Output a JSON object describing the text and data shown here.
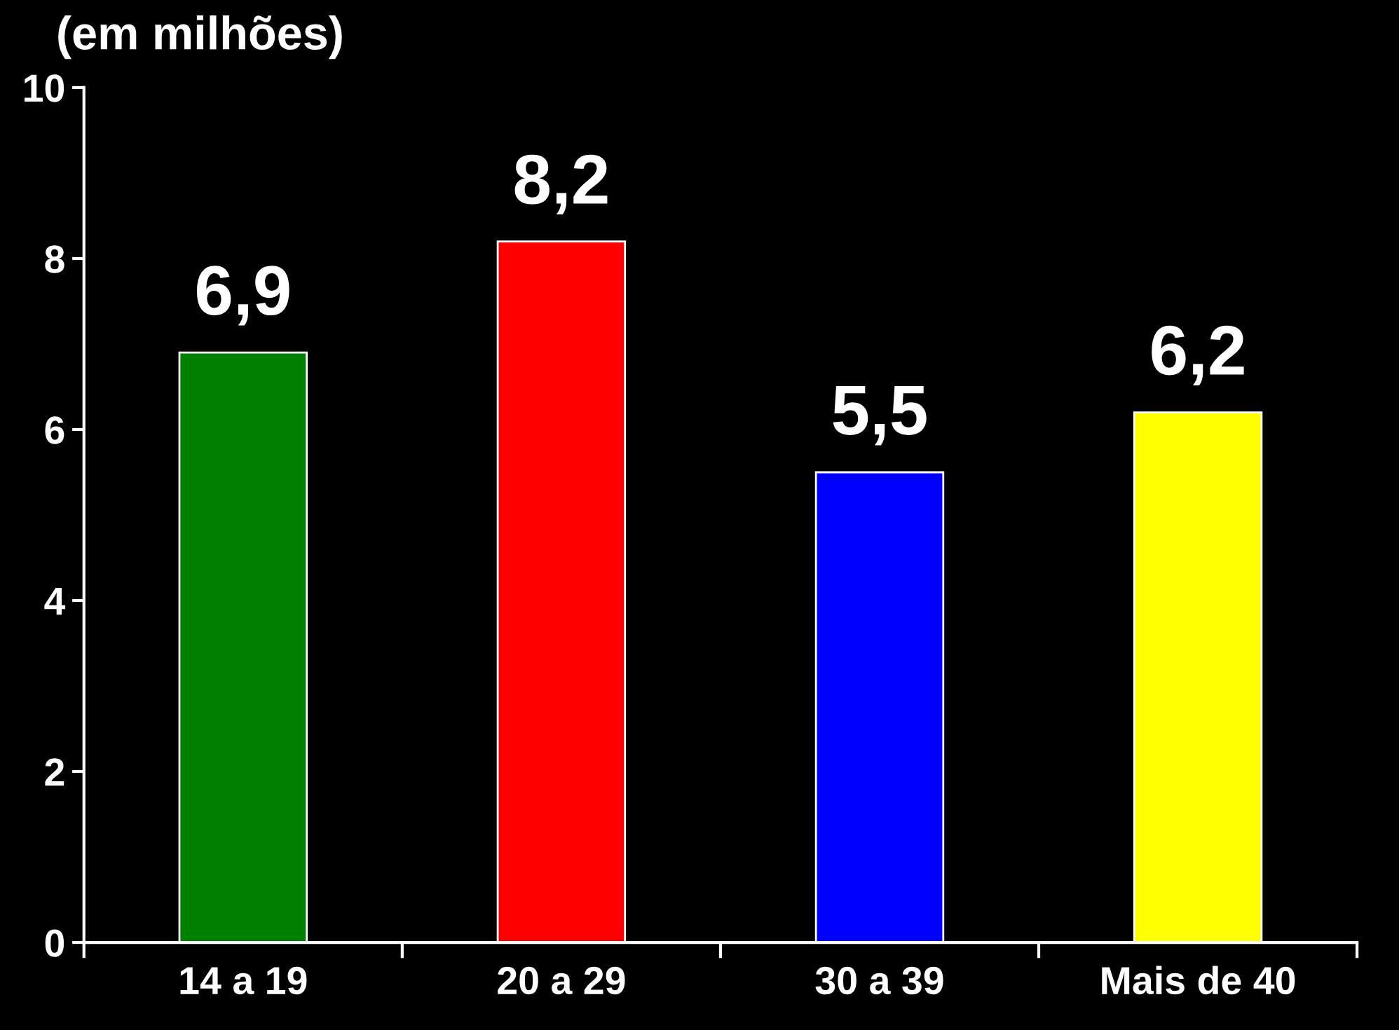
{
  "chart_data": {
    "type": "bar",
    "ylabel": "(em milhões)",
    "categories": [
      "14 a 19",
      "20 a 29",
      "30 a 39",
      "Mais de 40"
    ],
    "values": [
      6.9,
      8.2,
      5.5,
      6.2
    ],
    "colors": [
      "#008000",
      "#ff0000",
      "#0000ff",
      "#ffff00"
    ],
    "value_labels": [
      "6,9",
      "8,2",
      "5,5",
      "6,2"
    ],
    "ylim": [
      0,
      10
    ],
    "yticks": [
      0,
      2,
      4,
      6,
      8,
      10
    ],
    "grid": false
  }
}
